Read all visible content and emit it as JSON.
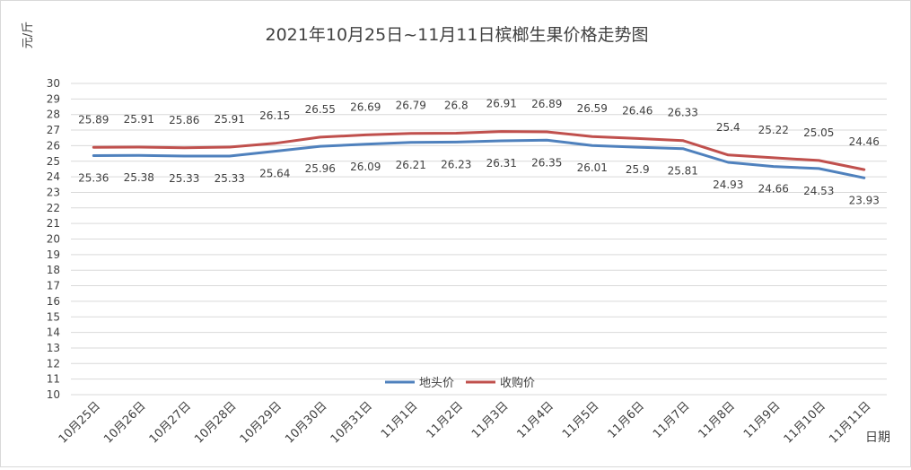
{
  "chart_data": {
    "type": "line",
    "title": "2021年10月25日~11月11日槟榔生果价格走势图",
    "ylabel": "元/斤",
    "xlabel": "日期",
    "ylim": [
      10,
      30
    ],
    "y_ticks": [
      10,
      11,
      12,
      13,
      14,
      15,
      16,
      17,
      18,
      19,
      20,
      21,
      22,
      23,
      24,
      25,
      26,
      27,
      28,
      29,
      30
    ],
    "grid": true,
    "legend_position": "bottom-center",
    "categories": [
      "10月25日",
      "10月26日",
      "10月27日",
      "10月28日",
      "10月29日",
      "10月30日",
      "10月31日",
      "11月1日",
      "11月2日",
      "11月3日",
      "11月4日",
      "11月5日",
      "11月6日",
      "11月7日",
      "11月8日",
      "11月9日",
      "11月10日",
      "11月11日"
    ],
    "series": [
      {
        "name": "地头价",
        "color": "#4f81bd",
        "values": [
          25.36,
          25.38,
          25.33,
          25.33,
          25.64,
          25.96,
          26.09,
          26.21,
          26.23,
          26.31,
          26.35,
          26.01,
          25.9,
          25.81,
          24.93,
          24.66,
          24.53,
          23.93
        ],
        "labels": [
          "25.36",
          "25.38",
          "25.33",
          "25.33",
          "25.64",
          "25.96",
          "26.09",
          "26.21",
          "26.23",
          "26.31",
          "26.35",
          "26.01",
          "25.9",
          "25.81",
          "24.93",
          "24.66",
          "24.53",
          "23.93"
        ],
        "label_side": "below"
      },
      {
        "name": "收购价",
        "color": "#c0504d",
        "values": [
          25.89,
          25.91,
          25.86,
          25.91,
          26.15,
          26.55,
          26.69,
          26.79,
          26.8,
          26.91,
          26.89,
          26.59,
          26.46,
          26.33,
          25.4,
          25.22,
          25.05,
          24.46
        ],
        "labels": [
          "25.89",
          "25.91",
          "25.86",
          "25.91",
          "26.15",
          "26.55",
          "26.69",
          "26.79",
          "26.8",
          "26.91",
          "26.89",
          "26.59",
          "26.46",
          "26.33",
          "25.4",
          "25.22",
          "25.05",
          "24.46"
        ],
        "label_side": "above"
      }
    ]
  }
}
